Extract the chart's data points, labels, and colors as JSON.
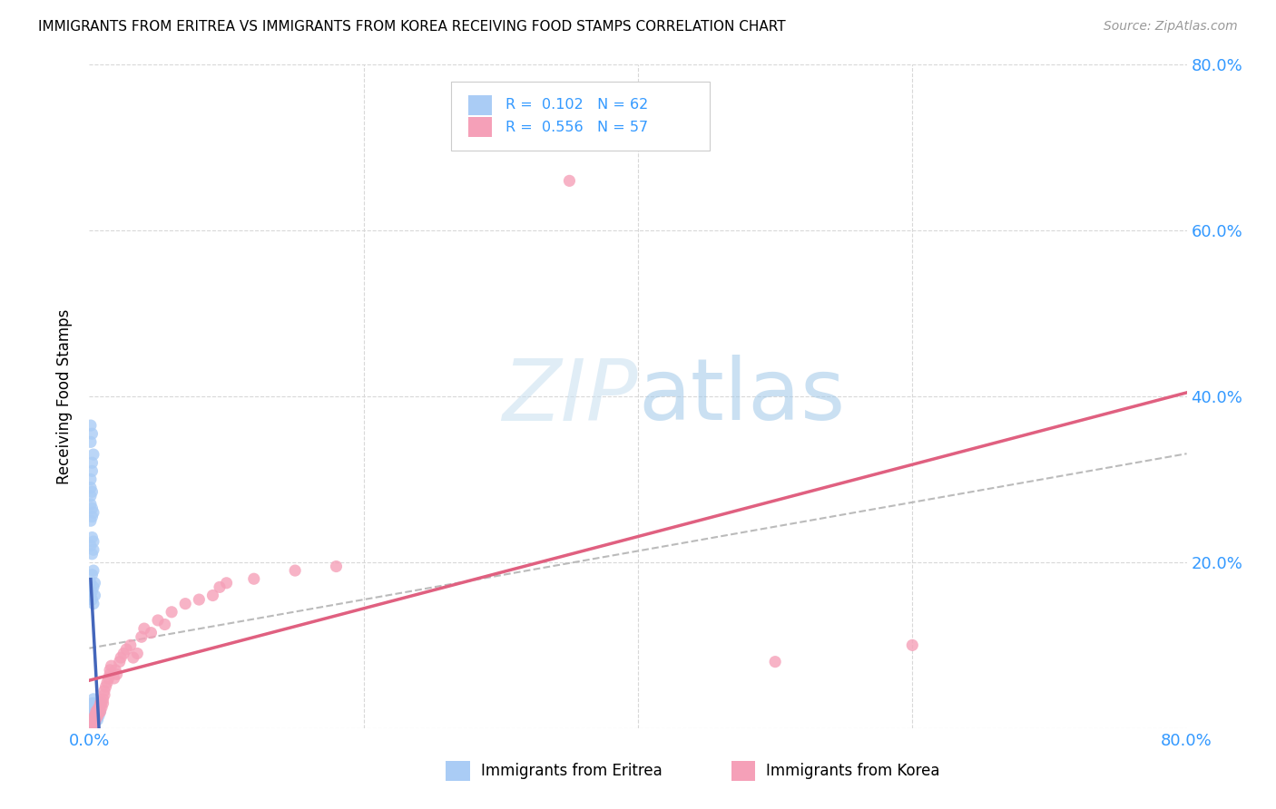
{
  "title": "IMMIGRANTS FROM ERITREA VS IMMIGRANTS FROM KOREA RECEIVING FOOD STAMPS CORRELATION CHART",
  "source": "Source: ZipAtlas.com",
  "legend_label1": "Immigrants from Eritrea",
  "legend_label2": "Immigrants from Korea",
  "R1": "0.102",
  "N1": "62",
  "R2": "0.556",
  "N2": "57",
  "color1": "#aaccf5",
  "color2": "#f5a0b8",
  "line1_color": "#4466bb",
  "line2_color": "#e06080",
  "trendline_color": "#bbbbbb",
  "background_color": "#ffffff",
  "xlim": [
    0.0,
    0.8
  ],
  "ylim": [
    0.0,
    0.8
  ],
  "eritrea_x": [
    0.001,
    0.001,
    0.001,
    0.001,
    0.002,
    0.002,
    0.002,
    0.002,
    0.002,
    0.002,
    0.003,
    0.003,
    0.003,
    0.003,
    0.003,
    0.003,
    0.003,
    0.004,
    0.004,
    0.004,
    0.004,
    0.005,
    0.005,
    0.005,
    0.006,
    0.006,
    0.007,
    0.007,
    0.008,
    0.008,
    0.001,
    0.001,
    0.002,
    0.002,
    0.002,
    0.003,
    0.003,
    0.003,
    0.004,
    0.004,
    0.001,
    0.002,
    0.002,
    0.003,
    0.003,
    0.001,
    0.002,
    0.001,
    0.002,
    0.003,
    0.001,
    0.002,
    0.001,
    0.001,
    0.002,
    0.002,
    0.003,
    0.001,
    0.002,
    0.001,
    0.001,
    0.002
  ],
  "eritrea_y": [
    0.005,
    0.01,
    0.015,
    0.02,
    0.005,
    0.01,
    0.015,
    0.02,
    0.025,
    0.03,
    0.005,
    0.01,
    0.015,
    0.02,
    0.025,
    0.03,
    0.035,
    0.01,
    0.015,
    0.02,
    0.025,
    0.01,
    0.015,
    0.02,
    0.01,
    0.02,
    0.015,
    0.025,
    0.02,
    0.03,
    0.16,
    0.175,
    0.155,
    0.165,
    0.185,
    0.15,
    0.17,
    0.19,
    0.16,
    0.175,
    0.22,
    0.21,
    0.23,
    0.215,
    0.225,
    0.25,
    0.255,
    0.27,
    0.265,
    0.26,
    0.28,
    0.285,
    0.29,
    0.3,
    0.31,
    0.32,
    0.33,
    0.345,
    0.355,
    0.365,
    0.002,
    0.003
  ],
  "korea_x": [
    0.001,
    0.002,
    0.002,
    0.003,
    0.003,
    0.003,
    0.004,
    0.004,
    0.005,
    0.005,
    0.005,
    0.006,
    0.006,
    0.007,
    0.007,
    0.008,
    0.008,
    0.008,
    0.009,
    0.009,
    0.01,
    0.01,
    0.011,
    0.011,
    0.012,
    0.013,
    0.014,
    0.015,
    0.015,
    0.016,
    0.018,
    0.019,
    0.02,
    0.022,
    0.023,
    0.025,
    0.027,
    0.03,
    0.032,
    0.035,
    0.038,
    0.04,
    0.045,
    0.05,
    0.055,
    0.06,
    0.07,
    0.08,
    0.09,
    0.095,
    0.1,
    0.12,
    0.15,
    0.18,
    0.35,
    0.5,
    0.6
  ],
  "korea_y": [
    0.002,
    0.005,
    0.003,
    0.008,
    0.01,
    0.012,
    0.015,
    0.008,
    0.012,
    0.018,
    0.02,
    0.022,
    0.015,
    0.018,
    0.025,
    0.02,
    0.028,
    0.03,
    0.025,
    0.032,
    0.03,
    0.035,
    0.04,
    0.045,
    0.05,
    0.055,
    0.06,
    0.065,
    0.07,
    0.075,
    0.06,
    0.07,
    0.065,
    0.08,
    0.085,
    0.09,
    0.095,
    0.1,
    0.085,
    0.09,
    0.11,
    0.12,
    0.115,
    0.13,
    0.125,
    0.14,
    0.15,
    0.155,
    0.16,
    0.17,
    0.175,
    0.18,
    0.19,
    0.195,
    0.66,
    0.08,
    0.1
  ]
}
